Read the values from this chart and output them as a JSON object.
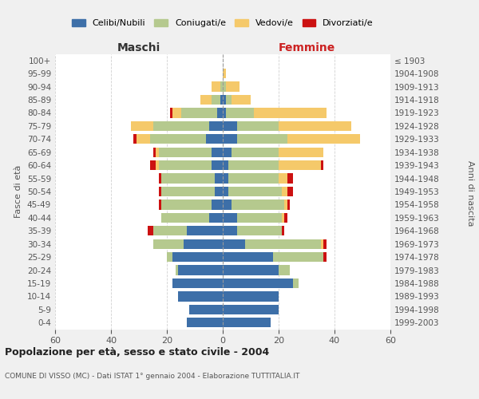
{
  "age_groups": [
    "0-4",
    "5-9",
    "10-14",
    "15-19",
    "20-24",
    "25-29",
    "30-34",
    "35-39",
    "40-44",
    "45-49",
    "50-54",
    "55-59",
    "60-64",
    "65-69",
    "70-74",
    "75-79",
    "80-84",
    "85-89",
    "90-94",
    "95-99",
    "100+"
  ],
  "birth_years": [
    "1999-2003",
    "1994-1998",
    "1989-1993",
    "1984-1988",
    "1979-1983",
    "1974-1978",
    "1969-1973",
    "1964-1968",
    "1959-1963",
    "1954-1958",
    "1949-1953",
    "1944-1948",
    "1939-1943",
    "1934-1938",
    "1929-1933",
    "1924-1928",
    "1919-1923",
    "1914-1918",
    "1909-1913",
    "1904-1908",
    "≤ 1903"
  ],
  "maschi": {
    "celibi": [
      13,
      12,
      16,
      18,
      16,
      18,
      14,
      13,
      5,
      4,
      3,
      3,
      4,
      4,
      6,
      5,
      2,
      1,
      0,
      0,
      0
    ],
    "coniugati": [
      0,
      0,
      0,
      0,
      1,
      2,
      11,
      12,
      17,
      18,
      19,
      19,
      19,
      19,
      20,
      20,
      13,
      3,
      1,
      0,
      0
    ],
    "vedovi": [
      0,
      0,
      0,
      0,
      0,
      0,
      0,
      0,
      0,
      0,
      0,
      0,
      1,
      1,
      5,
      8,
      3,
      4,
      3,
      0,
      0
    ],
    "divorziati": [
      0,
      0,
      0,
      0,
      0,
      0,
      0,
      2,
      0,
      1,
      1,
      1,
      2,
      1,
      1,
      0,
      1,
      0,
      0,
      0,
      0
    ]
  },
  "femmine": {
    "nubili": [
      17,
      20,
      20,
      25,
      20,
      18,
      8,
      5,
      5,
      3,
      2,
      2,
      2,
      3,
      5,
      5,
      1,
      1,
      0,
      0,
      0
    ],
    "coniugate": [
      0,
      0,
      0,
      2,
      4,
      18,
      27,
      16,
      16,
      19,
      19,
      18,
      18,
      17,
      18,
      15,
      10,
      2,
      1,
      0,
      0
    ],
    "vedove": [
      0,
      0,
      0,
      0,
      0,
      0,
      1,
      0,
      1,
      1,
      2,
      3,
      15,
      16,
      26,
      26,
      26,
      7,
      5,
      1,
      0
    ],
    "divorziate": [
      0,
      0,
      0,
      0,
      0,
      1,
      1,
      1,
      1,
      1,
      2,
      2,
      1,
      0,
      0,
      0,
      0,
      0,
      0,
      0,
      0
    ]
  },
  "colors": {
    "celibi_nubili": "#3d6fa8",
    "coniugati": "#b5c98e",
    "vedovi": "#f5c96a",
    "divorziati": "#cc1111"
  },
  "title": "Popolazione per età, sesso e stato civile - 2004",
  "subtitle": "COMUNE DI VISSO (MC) - Dati ISTAT 1° gennaio 2004 - Elaborazione TUTTITALIA.IT",
  "xlabel_left": "Maschi",
  "xlabel_right": "Femmine",
  "ylabel_left": "Fasce di età",
  "ylabel_right": "Anni di nascita",
  "xlim": 60,
  "bg_color": "#f0f0f0",
  "plot_bg": "#ffffff",
  "legend_labels": [
    "Celibi/Nubili",
    "Coniugati/e",
    "Vedovi/e",
    "Divorziati/e"
  ]
}
